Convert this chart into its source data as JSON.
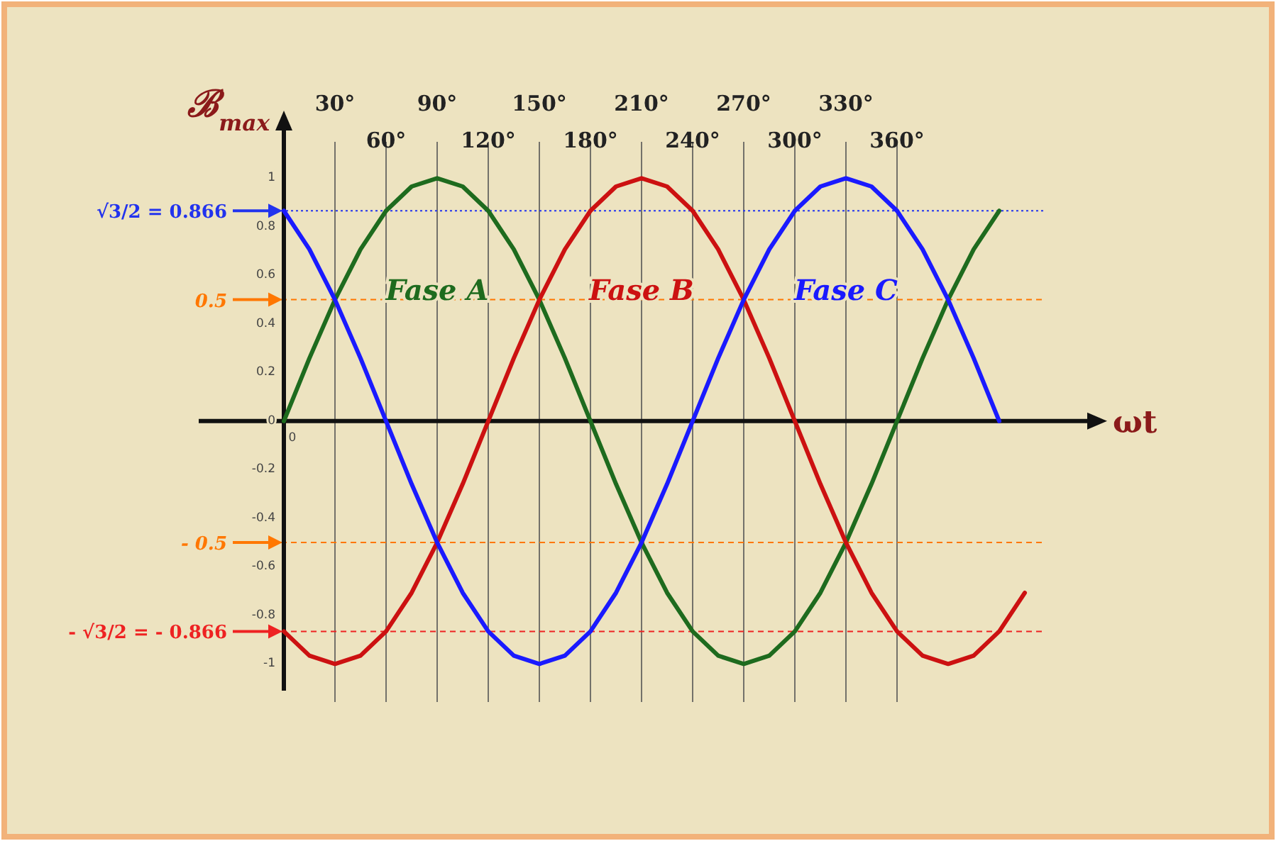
{
  "chart_data": {
    "type": "line",
    "xlabel": "ωt",
    "ylabel": "ℬ$_{max}$",
    "xlim": [
      -50,
      475
    ],
    "annotations": [
      "0"
    ],
    "xticks": [
      {
        "value": 60,
        "label": "60°"
      },
      {
        "value": 120,
        "label": "120°"
      },
      {
        "value": 180,
        "label": "180°"
      },
      {
        "value": 240,
        "label": "240°"
      },
      {
        "value": 300,
        "label": "300°"
      },
      {
        "value": 360,
        "label": "360°"
      }
    ],
    "x2lim": [
      -50,
      475
    ],
    "x2ticks": [
      {
        "value": 30,
        "label": "30°"
      },
      {
        "value": 90,
        "label": "90°"
      },
      {
        "value": 150,
        "label": "150°"
      },
      {
        "value": 210,
        "label": "210°"
      },
      {
        "value": 270,
        "label": "270°"
      },
      {
        "value": 330,
        "label": "330°"
      }
    ],
    "ylim": [
      -1.11,
      1.22
    ],
    "yticks": [
      -1,
      -0.8,
      -0.6,
      -0.4,
      -0.2,
      0,
      0.2,
      0.4,
      0.6,
      0.8,
      1
    ],
    "grid": "x",
    "marker": "none",
    "line_style": "solid",
    "series": [
      {
        "name": "Fase A",
        "color": "#1e6b1e",
        "x": [
          0,
          15,
          30,
          45,
          60,
          75,
          90,
          105,
          120,
          135,
          150,
          165,
          180,
          195,
          210,
          225,
          240,
          255,
          270,
          285,
          300,
          315,
          330,
          345,
          360,
          375,
          390,
          405,
          420
        ],
        "values": [
          0,
          0.259,
          0.5,
          0.707,
          0.866,
          0.966,
          1,
          0.966,
          0.866,
          0.707,
          0.5,
          0.259,
          0,
          -0.259,
          -0.5,
          -0.707,
          -0.866,
          -0.966,
          -1,
          -0.966,
          -0.866,
          -0.707,
          -0.5,
          -0.259,
          0,
          0.259,
          0.5,
          0.707,
          0.866
        ]
      },
      {
        "name": "Fase B",
        "color": "#cc1111",
        "x": [
          0,
          15,
          30,
          45,
          60,
          75,
          90,
          105,
          120,
          135,
          150,
          165,
          180,
          195,
          210,
          225,
          240,
          255,
          270,
          285,
          300,
          315,
          330,
          345,
          360,
          375,
          390,
          405,
          420,
          435
        ],
        "values": [
          -0.866,
          -0.966,
          -1,
          -0.966,
          -0.866,
          -0.707,
          -0.5,
          -0.259,
          0,
          0.259,
          0.5,
          0.707,
          0.866,
          0.966,
          1,
          0.966,
          0.866,
          0.707,
          0.5,
          0.259,
          0,
          -0.259,
          -0.5,
          -0.707,
          -0.866,
          -0.966,
          -1,
          -0.966,
          -0.866,
          -0.707
        ]
      },
      {
        "name": "Fase C",
        "color": "#1a1aff",
        "x": [
          0,
          15,
          30,
          45,
          60,
          75,
          90,
          105,
          120,
          135,
          150,
          165,
          180,
          195,
          210,
          225,
          240,
          255,
          270,
          285,
          300,
          315,
          330,
          345,
          360,
          375,
          390,
          405,
          420
        ],
        "values": [
          0.866,
          0.707,
          0.5,
          0.259,
          0,
          -0.259,
          -0.5,
          -0.707,
          -0.866,
          -0.966,
          -1,
          -0.966,
          -0.866,
          -0.707,
          -0.5,
          -0.259,
          0,
          0.259,
          0.5,
          0.707,
          0.866,
          0.966,
          1,
          0.966,
          0.866,
          0.707,
          0.5,
          0.259,
          0
        ]
      }
    ],
    "ref_lines": [
      {
        "axis": "y",
        "value": 0.866,
        "label": "√3/2 = 0.866",
        "color": "#2233ee",
        "line_style": "dotted"
      },
      {
        "axis": "y",
        "value": 0.5,
        "label": "0.5",
        "color": "#ff7700",
        "line_style": "dashed"
      },
      {
        "axis": "y",
        "value": -0.5,
        "label": "- 0.5",
        "color": "#ff7700",
        "line_style": "dashed"
      },
      {
        "axis": "y",
        "value": -0.866,
        "label": "- √3/2 = - 0.866",
        "color": "#ee2222",
        "line_style": "dashed"
      }
    ]
  }
}
